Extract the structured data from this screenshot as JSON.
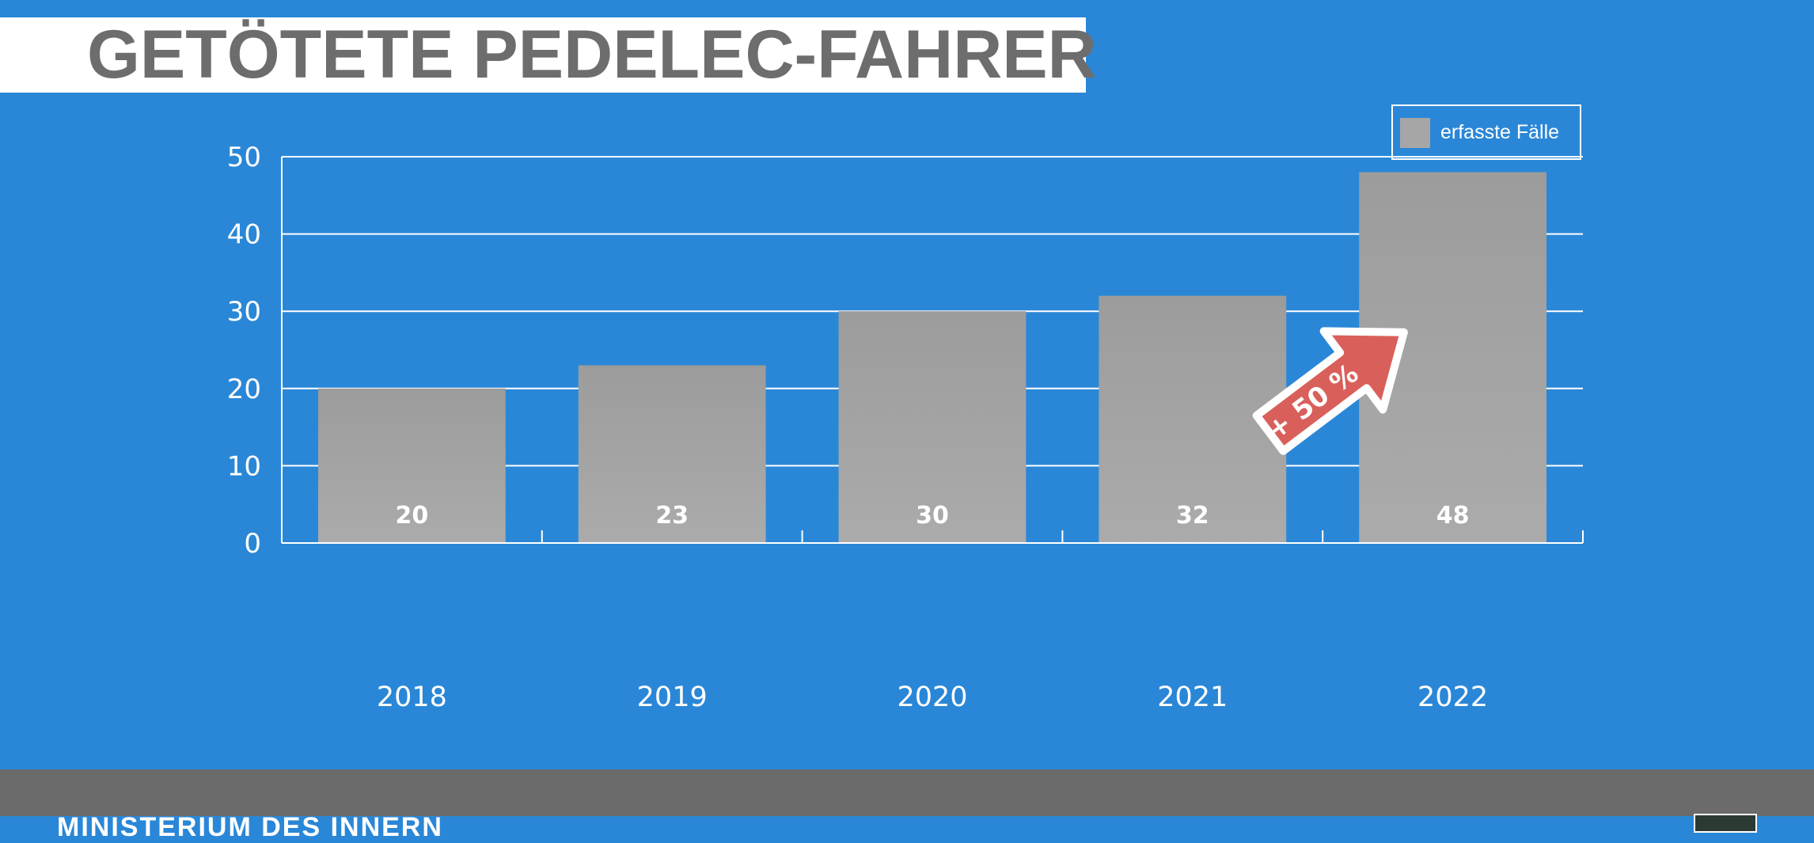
{
  "title": "GETÖTETE PEDELEC-FAHRER",
  "legend": {
    "label": "erfasste Fälle",
    "swatch_color": "#a6a6a6"
  },
  "annotation": {
    "label": "+ 50 %",
    "color": "#d95f5a",
    "icon": "arrow-up-right-icon"
  },
  "footer": {
    "text": "MINISTERIUM DES INNERN"
  },
  "colors": {
    "background": "#2a87d7",
    "bar": "#a6a6a6",
    "bar_top": "#9c9c9c",
    "grid": "#ffffff",
    "title_text": "#6d6d6d",
    "footer": "#6b6b6b"
  },
  "chart_data": {
    "type": "bar",
    "title": "GETÖTETE PEDELEC-FAHRER",
    "xlabel": "",
    "ylabel": "",
    "categories": [
      "2018",
      "2019",
      "2020",
      "2021",
      "2022"
    ],
    "series": [
      {
        "name": "erfasste Fälle",
        "values": [
          20,
          23,
          30,
          32,
          48
        ]
      }
    ],
    "data_labels": [
      "20",
      "23",
      "30",
      "32",
      "48"
    ],
    "ylim": [
      0,
      50
    ],
    "yticks": [
      0,
      10,
      20,
      30,
      40,
      50
    ],
    "grid": true,
    "legend_position": "top-right",
    "annotations": [
      {
        "text": "+ 50 %",
        "from": "2021",
        "to": "2022",
        "shape": "arrow"
      }
    ]
  }
}
